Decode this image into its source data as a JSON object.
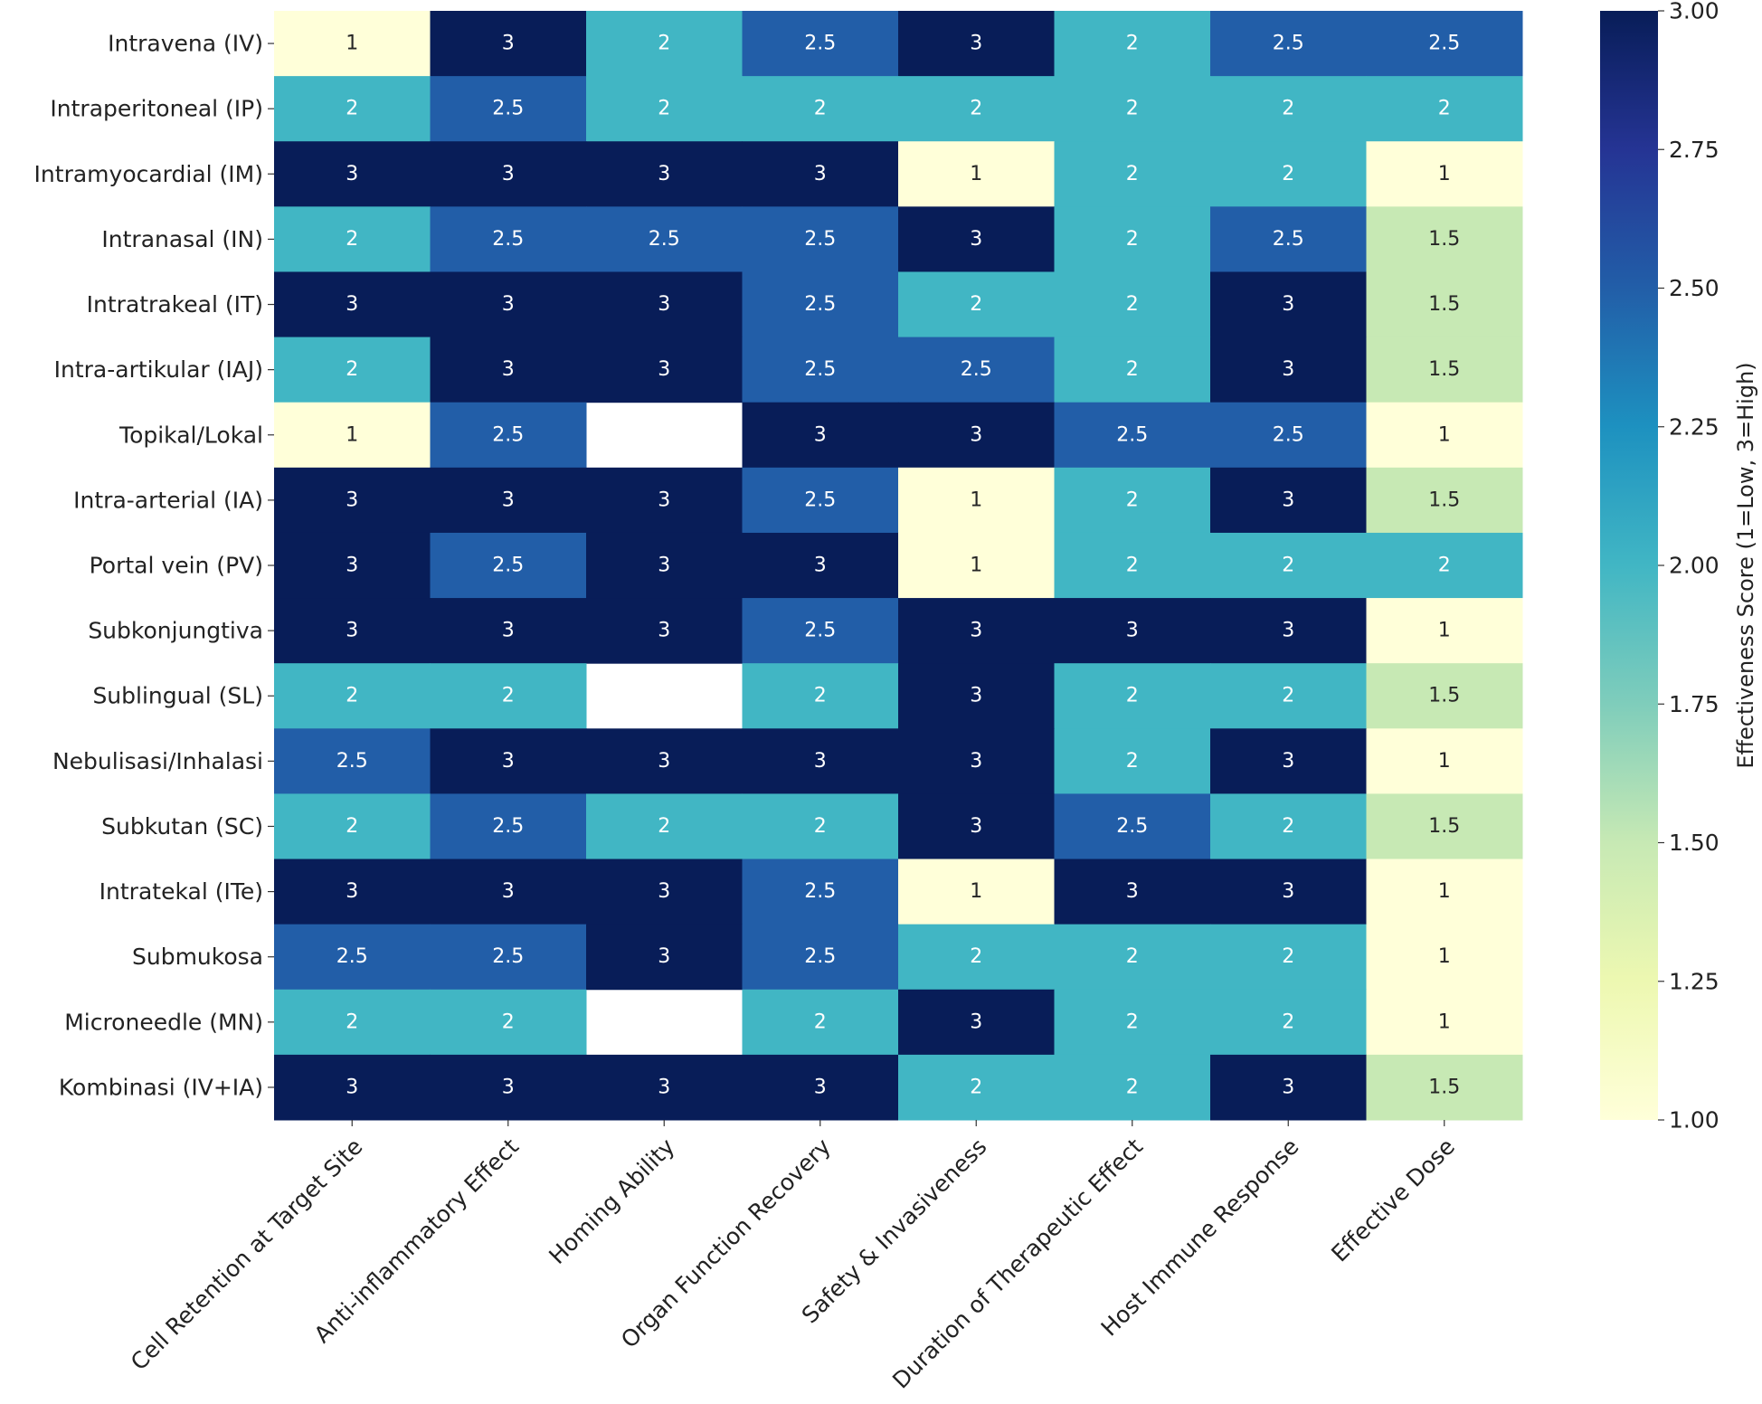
{
  "chart_data": {
    "type": "heatmap",
    "rows": [
      "Intravena (IV)",
      "Intraperitoneal (IP)",
      "Intramyocardial (IM)",
      "Intranasal (IN)",
      "Intratrakeal (IT)",
      "Intra-artikular (IAJ)",
      "Topikal/Lokal",
      "Intra-arterial (IA)",
      "Portal vein (PV)",
      "Subkonjungtiva",
      "Sublingual (SL)",
      "Nebulisasi/Inhalasi",
      "Subkutan (SC)",
      "Intratekal (ITe)",
      "Submukosa",
      "Microneedle (MN)",
      "Kombinasi (IV+IA)"
    ],
    "categories": [
      "Cell Retention at Target Site",
      "Anti-inflammatory Effect",
      "Homing Ability",
      "Organ Function Recovery",
      "Safety & Invasiveness",
      "Duration of Therapeutic Effect",
      "Host Immune Response",
      "Effective Dose"
    ],
    "values": [
      [
        1,
        3,
        2,
        2.5,
        3,
        2,
        2.5,
        2.5
      ],
      [
        2,
        2.5,
        2,
        2,
        2,
        2,
        2,
        2
      ],
      [
        3,
        3,
        3,
        3,
        1,
        2,
        2,
        1
      ],
      [
        2,
        2.5,
        2.5,
        2.5,
        3,
        2,
        2.5,
        1.5
      ],
      [
        3,
        3,
        3,
        2.5,
        2,
        2,
        3,
        1.5
      ],
      [
        2,
        3,
        3,
        2.5,
        2.5,
        2,
        3,
        1.5
      ],
      [
        1,
        2.5,
        null,
        3,
        3,
        2.5,
        2.5,
        1
      ],
      [
        3,
        3,
        3,
        2.5,
        1,
        2,
        3,
        1.5
      ],
      [
        3,
        2.5,
        3,
        3,
        1,
        2,
        2,
        2
      ],
      [
        3,
        3,
        3,
        2.5,
        3,
        3,
        3,
        1
      ],
      [
        2,
        2,
        null,
        2,
        3,
        2,
        2,
        1.5
      ],
      [
        2.5,
        3,
        3,
        3,
        3,
        2,
        3,
        1
      ],
      [
        2,
        2.5,
        2,
        2,
        3,
        2.5,
        2,
        1.5
      ],
      [
        3,
        3,
        3,
        2.5,
        1,
        3,
        3,
        1
      ],
      [
        2.5,
        2.5,
        3,
        2.5,
        2,
        2,
        2,
        1
      ],
      [
        2,
        2,
        null,
        2,
        3,
        2,
        2,
        1
      ],
      [
        3,
        3,
        3,
        3,
        2,
        2,
        3,
        1.5
      ]
    ],
    "zlim": [
      1,
      3
    ],
    "zticks": [
      {
        "value": 1,
        "label": "1.00"
      },
      {
        "value": 1.25,
        "label": "1.25"
      },
      {
        "value": 1.5,
        "label": "1.50"
      },
      {
        "value": 1.75,
        "label": "1.75"
      },
      {
        "value": 2,
        "label": "2.00"
      },
      {
        "value": 2.25,
        "label": "2.25"
      },
      {
        "value": 2.5,
        "label": "2.50"
      },
      {
        "value": 2.75,
        "label": "2.75"
      },
      {
        "value": 3,
        "label": "3.00"
      }
    ],
    "colorbar_label": "Effectiveness Score (1=Low, 3=High)",
    "colors": [
      "#ffffd9",
      "#edf8b1",
      "#c7e9b4",
      "#7fcdbb",
      "#41b6c4",
      "#1d91c0",
      "#225ea8",
      "#253494",
      "#081d58"
    ]
  }
}
